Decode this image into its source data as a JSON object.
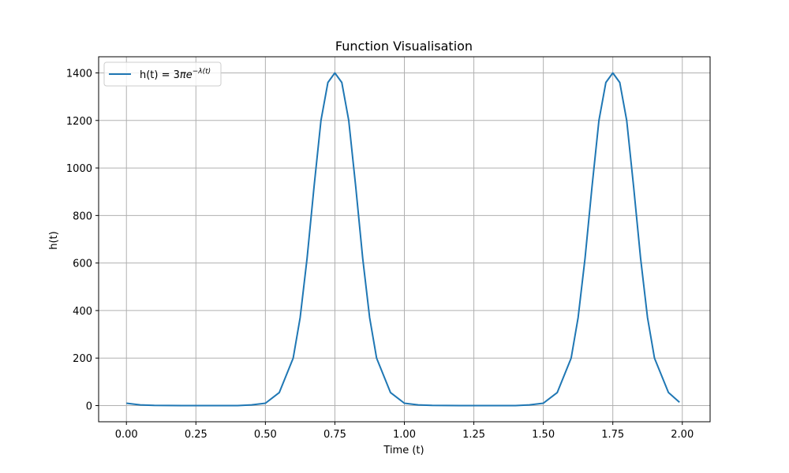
{
  "chart_data": {
    "type": "line",
    "title": "Function Visualisation",
    "xlabel": "Time (t)",
    "ylabel": "h(t)",
    "xlim": [
      -0.1,
      2.1
    ],
    "ylim": [
      -68,
      1468
    ],
    "grid": true,
    "legend_position": "top-left",
    "xticks": [
      0.0,
      0.25,
      0.5,
      0.75,
      1.0,
      1.25,
      1.5,
      1.75,
      2.0
    ],
    "xtick_labels": [
      "0.00",
      "0.25",
      "0.50",
      "0.75",
      "1.00",
      "1.25",
      "1.50",
      "1.75",
      "2.00"
    ],
    "yticks": [
      0,
      200,
      400,
      600,
      800,
      1000,
      1200,
      1400
    ],
    "ytick_labels": [
      "0",
      "200",
      "400",
      "600",
      "800",
      "1000",
      "1200",
      "1400"
    ],
    "series": [
      {
        "name": "h(t) = 3πe^{−λ(t)}",
        "color": "#1f77b4",
        "x": [
          0.0,
          0.05,
          0.1,
          0.2,
          0.3,
          0.4,
          0.45,
          0.5,
          0.55,
          0.6,
          0.625,
          0.65,
          0.675,
          0.7,
          0.725,
          0.75,
          0.775,
          0.8,
          0.825,
          0.85,
          0.875,
          0.9,
          0.95,
          1.0,
          1.05,
          1.1,
          1.2,
          1.3,
          1.4,
          1.45,
          1.5,
          1.55,
          1.6,
          1.625,
          1.65,
          1.675,
          1.7,
          1.725,
          1.75,
          1.775,
          1.8,
          1.825,
          1.85,
          1.875,
          1.9,
          1.95,
          1.99
        ],
        "y": [
          10,
          3,
          1,
          0,
          0,
          0,
          3,
          10,
          55,
          200,
          370,
          620,
          920,
          1200,
          1360,
          1400,
          1360,
          1200,
          920,
          620,
          370,
          200,
          55,
          10,
          3,
          1,
          0,
          0,
          0,
          3,
          10,
          55,
          200,
          370,
          620,
          920,
          1200,
          1360,
          1400,
          1360,
          1200,
          920,
          620,
          370,
          200,
          55,
          14
        ]
      }
    ]
  },
  "legend": {
    "label_prefix": "h(t) = 3",
    "label_pi": "π",
    "label_e": "e",
    "label_exp": "−λ(t)"
  }
}
